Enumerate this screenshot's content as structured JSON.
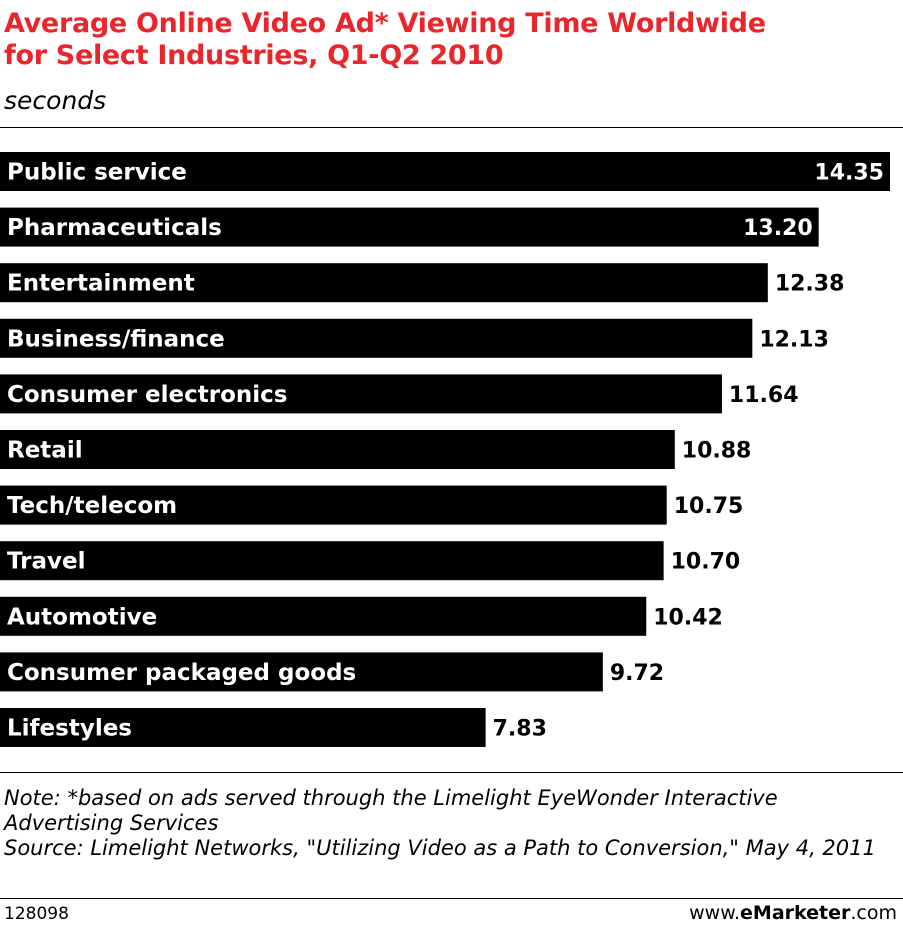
{
  "header": {
    "title_line1": "Average Online Video Ad* Viewing Time Worldwide",
    "title_line2": "for Select Industries, Q1-Q2 2010",
    "subtitle": "seconds"
  },
  "chart_data": {
    "type": "bar",
    "orientation": "horizontal",
    "title": "Average Online Video Ad* Viewing Time Worldwide for Select Industries, Q1-Q2 2010",
    "unit": "seconds",
    "categories": [
      "Public service",
      "Pharmaceuticals",
      "Entertainment",
      "Business/finance",
      "Consumer electronics",
      "Retail",
      "Tech/telecom",
      "Travel",
      "Automotive",
      "Consumer packaged goods",
      "Lifestyles"
    ],
    "values": [
      14.35,
      13.2,
      12.38,
      12.13,
      11.64,
      10.88,
      10.75,
      10.7,
      10.42,
      9.72,
      7.83
    ],
    "value_labels": [
      "14.35",
      "13.20",
      "12.38",
      "12.13",
      "11.64",
      "10.88",
      "10.75",
      "10.70",
      "10.42",
      "9.72",
      "7.83"
    ],
    "xlim": [
      0,
      14.35
    ],
    "grid": false,
    "legend": "none",
    "bar_color": "#000000"
  },
  "notes": {
    "note": "Note: *based on ads served through the Limelight EyeWonder Interactive Advertising Services",
    "source": "Source: Limelight Networks, \"Utilizing Video as a Path to Conversion,\" May 4, 2011"
  },
  "footer": {
    "chart_id": "128098",
    "brand_prefix": "www.",
    "brand_name": "eMarketer",
    "brand_suffix": ".com"
  },
  "colors": {
    "title": "#e8262c",
    "bars": "#000000",
    "background": "#ffffff"
  }
}
